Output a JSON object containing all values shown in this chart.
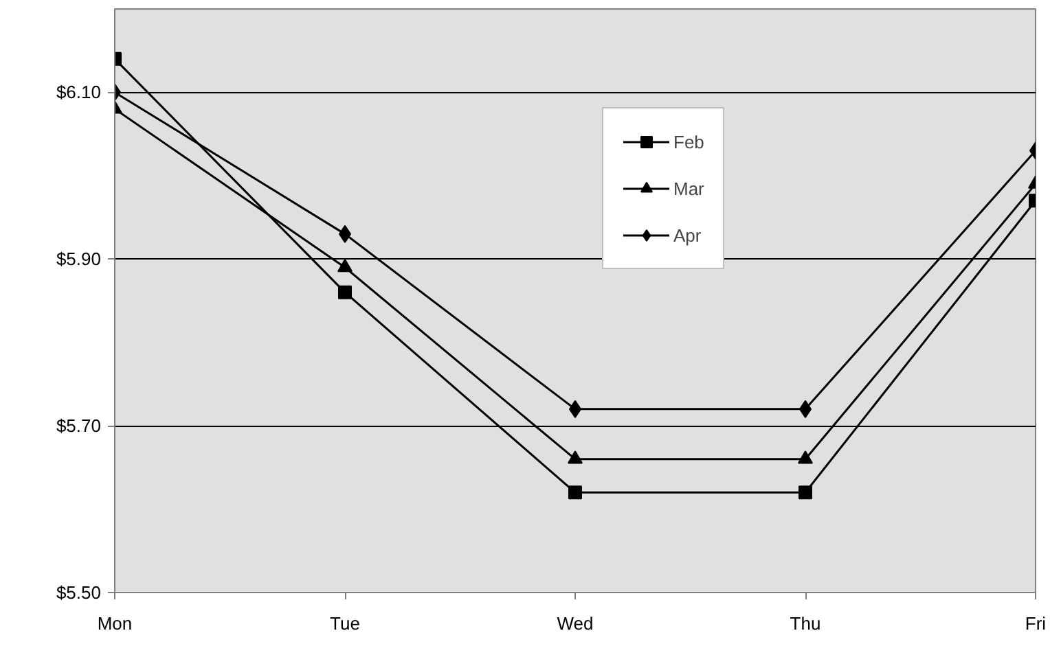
{
  "chart_data": {
    "type": "line",
    "categories": [
      "Mon",
      "Tue",
      "Wed",
      "Thu",
      "Fri"
    ],
    "series": [
      {
        "name": "Feb",
        "color": "#000000",
        "marker": "square",
        "values": [
          6.14,
          5.86,
          5.62,
          5.62,
          5.97
        ]
      },
      {
        "name": "Mar",
        "color": "#000000",
        "marker": "triangle",
        "values": [
          6.08,
          5.89,
          5.66,
          5.66,
          5.99
        ]
      },
      {
        "name": "Apr",
        "color": "#000000",
        "marker": "diamond",
        "values": [
          6.1,
          5.93,
          5.72,
          5.72,
          6.03
        ]
      }
    ],
    "ylim": [
      5.5,
      6.2
    ],
    "yticks": [
      {
        "value": 5.5,
        "label": "$5.50"
      },
      {
        "value": 5.7,
        "label": "$5.70"
      },
      {
        "value": 5.9,
        "label": "$5.90"
      },
      {
        "value": 6.1,
        "label": "$6.10"
      }
    ],
    "grid": "y",
    "legend": "top",
    "line_style": "solid"
  }
}
